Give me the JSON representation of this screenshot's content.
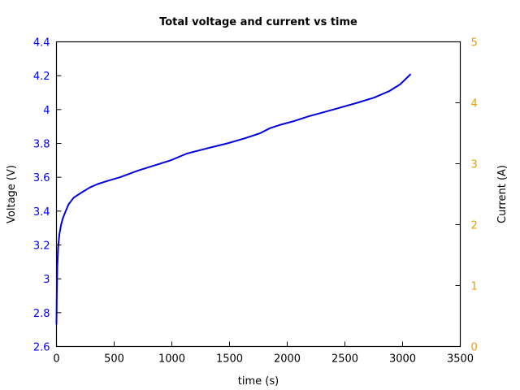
{
  "chart_data": {
    "type": "line",
    "title": "Total voltage and current vs time",
    "xlabel": "time (s)",
    "ylabel": "Voltage (V)",
    "y2label": "Current (A)",
    "xlim": [
      0,
      3500
    ],
    "ylim": [
      2.6,
      4.4
    ],
    "y2lim": [
      0,
      5
    ],
    "x_ticks": [
      "0",
      "500",
      "1000",
      "1500",
      "2000",
      "2500",
      "3000",
      "3500"
    ],
    "y_ticks": [
      "2.6",
      "2.8",
      "3",
      "3.2",
      "3.4",
      "3.6",
      "3.8",
      "4",
      "4.2",
      "4.4"
    ],
    "y2_ticks": [
      "0",
      "1",
      "2",
      "3",
      "4",
      "5"
    ],
    "grid": false,
    "legend": null,
    "colors": {
      "voltage_axis": "#0000ff",
      "current_axis": "#e69f00",
      "line": "#0000e0"
    },
    "series": [
      {
        "name": "Voltage",
        "axis": "left",
        "x": [
          0,
          3,
          7,
          14,
          25,
          40,
          56,
          80,
          105,
          150,
          218,
          290,
          358,
          450,
          550,
          710,
          850,
          990,
          1130,
          1300,
          1480,
          1630,
          1765,
          1850,
          1940,
          2050,
          2185,
          2400,
          2607,
          2750,
          2888,
          2980,
          3071
        ],
        "values": [
          2.73,
          2.9,
          3.07,
          3.18,
          3.26,
          3.32,
          3.36,
          3.4,
          3.44,
          3.48,
          3.51,
          3.54,
          3.56,
          3.58,
          3.6,
          3.64,
          3.67,
          3.7,
          3.74,
          3.77,
          3.8,
          3.83,
          3.86,
          3.89,
          3.91,
          3.93,
          3.96,
          4.0,
          4.04,
          4.07,
          4.11,
          4.15,
          4.21
        ]
      }
    ]
  }
}
